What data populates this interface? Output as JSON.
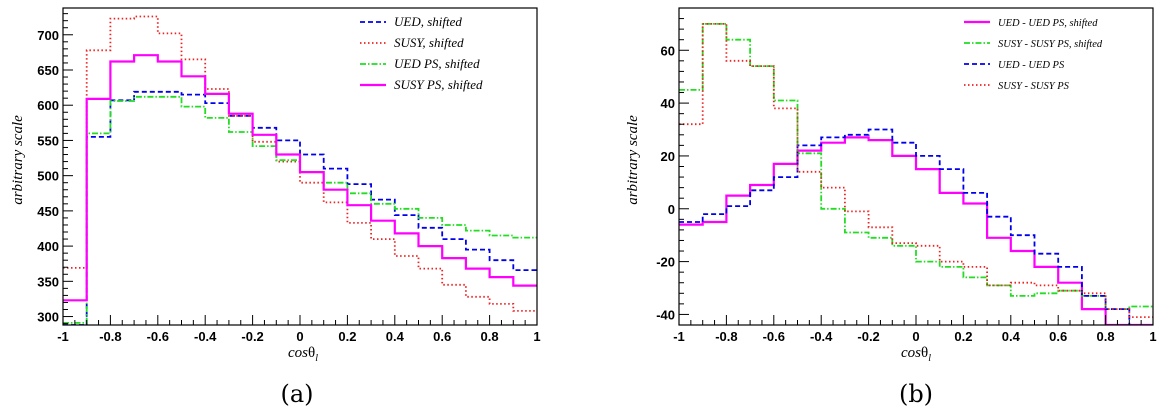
{
  "chart_data": [
    {
      "type": "line",
      "panel_label": "(a)",
      "xlabel_main": "cos",
      "xlabel_greek": "θ",
      "xlabel_sub": "l",
      "ylabel": "arbitrary scale",
      "xlim": [
        -1,
        1
      ],
      "ylim": [
        288,
        738
      ],
      "grid": false,
      "legend_position": "top-right",
      "x_ticks": [
        -1,
        -0.8,
        -0.6,
        -0.4,
        -0.2,
        0,
        0.2,
        0.4,
        0.6,
        0.8,
        1
      ],
      "x_tick_labels": [
        "-1",
        "-0.8",
        "-0.6",
        "-0.4",
        "-0.2",
        "0",
        "0.2",
        "0.4",
        "0.6",
        "0.8",
        "1"
      ],
      "y_ticks": [
        300,
        350,
        400,
        450,
        500,
        550,
        600,
        650,
        700
      ],
      "y_tick_labels": [
        "300",
        "350",
        "400",
        "450",
        "500",
        "550",
        "600",
        "650",
        "700"
      ],
      "bin_edges": [
        -1,
        -0.9,
        -0.8,
        -0.7,
        -0.6,
        -0.5,
        -0.4,
        -0.3,
        -0.2,
        -0.1,
        0,
        0.1,
        0.2,
        0.3,
        0.4,
        0.5,
        0.6,
        0.7,
        0.8,
        0.9,
        1
      ],
      "series": [
        {
          "name": "UED, shifted",
          "color": "#0000ee",
          "dash": "5,3",
          "width": 1.8,
          "values": [
            288,
            555,
            607,
            619,
            619,
            615,
            603,
            585,
            568,
            550,
            530,
            510,
            488,
            466,
            444,
            426,
            410,
            395,
            380,
            366
          ]
        },
        {
          "name": "SUSY, shifted",
          "color": "#ee2222",
          "dash": "1.5,2.5",
          "width": 1.8,
          "values": [
            369,
            678,
            723,
            726,
            702,
            665,
            623,
            585,
            548,
            520,
            490,
            462,
            433,
            410,
            386,
            368,
            345,
            328,
            318,
            308
          ]
        },
        {
          "name": "UED PS, shifted",
          "color": "#22dd22",
          "dash": "6,2,1.5,2",
          "width": 1.8,
          "values": [
            291,
            560,
            606,
            612,
            612,
            598,
            582,
            562,
            542,
            522,
            505,
            490,
            475,
            460,
            453,
            440,
            430,
            422,
            415,
            412
          ]
        },
        {
          "name": "SUSY PS, shifted",
          "color": "#ff00ff",
          "dash": "",
          "width": 2.2,
          "values": [
            323,
            609,
            662,
            671,
            662,
            641,
            616,
            588,
            558,
            530,
            505,
            480,
            458,
            436,
            418,
            400,
            383,
            368,
            356,
            344
          ]
        }
      ]
    },
    {
      "type": "line",
      "panel_label": "(b)",
      "xlabel_main": "cos",
      "xlabel_greek": "θ",
      "xlabel_sub": "l",
      "ylabel": "arbitrary scale",
      "xlim": [
        -1,
        1
      ],
      "ylim": [
        -44,
        76
      ],
      "grid": false,
      "legend_position": "top-right",
      "x_ticks": [
        -1,
        -0.8,
        -0.6,
        -0.4,
        -0.2,
        0,
        0.2,
        0.4,
        0.6,
        0.8,
        1
      ],
      "x_tick_labels": [
        "-1",
        "-0.8",
        "-0.6",
        "-0.4",
        "-0.2",
        "0",
        "0.2",
        "0.4",
        "0.6",
        "0.8",
        "1"
      ],
      "y_ticks": [
        -40,
        -20,
        0,
        20,
        40,
        60
      ],
      "y_tick_labels": [
        "-40",
        "-20",
        "0",
        "20",
        "40",
        "60"
      ],
      "bin_edges": [
        -1,
        -0.9,
        -0.8,
        -0.7,
        -0.6,
        -0.5,
        -0.4,
        -0.3,
        -0.2,
        -0.1,
        0,
        0.1,
        0.2,
        0.3,
        0.4,
        0.5,
        0.6,
        0.7,
        0.8,
        0.9,
        1
      ],
      "series": [
        {
          "name": "UED - UED PS, shifted",
          "color": "#ff00ff",
          "dash": "",
          "width": 2.2,
          "values": [
            -6,
            -5,
            5,
            9,
            17,
            22,
            25,
            27,
            26,
            20,
            15,
            6,
            2,
            -11,
            -16,
            -22,
            -28,
            -38,
            -44,
            -44
          ]
        },
        {
          "name": "SUSY - SUSY PS, shifted",
          "color": "#22dd22",
          "dash": "6,2,1.5,2",
          "width": 1.8,
          "values": [
            45,
            70,
            64,
            54,
            41,
            21,
            0,
            -9,
            -11,
            -14,
            -20,
            -22,
            -26,
            -29,
            -33,
            -32,
            -31,
            -33,
            -38,
            -37
          ]
        },
        {
          "name": "UED - UED PS",
          "color": "#0000ee",
          "dash": "5,3",
          "width": 1.8,
          "values": [
            -5,
            -2,
            1,
            7,
            12,
            24,
            27,
            28,
            30,
            25,
            20,
            15,
            6,
            -3,
            -10,
            -17,
            -22,
            -33,
            -38,
            -45
          ]
        },
        {
          "name": "SUSY - SUSY PS",
          "color": "#ee2222",
          "dash": "1.5,2.5",
          "width": 1.8,
          "values": [
            32,
            70,
            56,
            54,
            38,
            14,
            8,
            -1,
            -7,
            -13,
            -14,
            -20,
            -22,
            -29,
            -28,
            -29,
            -31,
            -32,
            -38,
            -41
          ]
        }
      ]
    }
  ]
}
